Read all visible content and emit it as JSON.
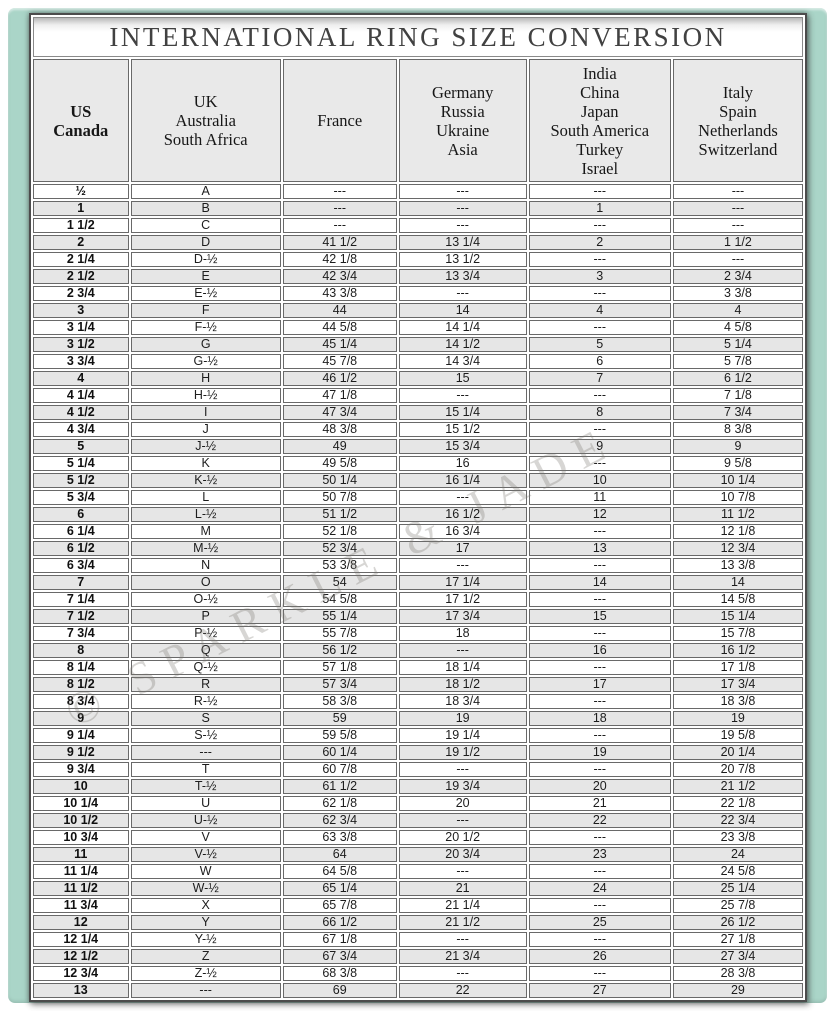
{
  "title": "INTERNATIONAL RING SIZE CONVERSION",
  "watermark": "© SPARKLE & JADE",
  "colors": {
    "frame_teal": "#aad5c8",
    "header_bg": "#e9e9e9",
    "row_alt_gray": "#e6e6e6",
    "grid_border": "#696969",
    "title_text": "#414141"
  },
  "chart_data": {
    "type": "table",
    "title": "INTERNATIONAL RING SIZE CONVERSION",
    "empty_marker": "---",
    "columns": [
      {
        "key": "us-canada",
        "bold": true,
        "lines": [
          "US",
          "Canada"
        ]
      },
      {
        "key": "uk-australia-south-africa",
        "bold": false,
        "lines": [
          "UK",
          "Australia",
          "South Africa"
        ]
      },
      {
        "key": "france",
        "bold": false,
        "lines": [
          "France"
        ]
      },
      {
        "key": "germany-russia-ukraine-asia",
        "bold": false,
        "lines": [
          "Germany",
          "Russia",
          "Ukraine",
          "Asia"
        ]
      },
      {
        "key": "india-china-japan-south-america-turkey-israel",
        "bold": false,
        "lines": [
          "India",
          "China",
          "Japan",
          "South America",
          "Turkey",
          "Israel"
        ]
      },
      {
        "key": "italy-spain-netherlands-switzerland",
        "bold": false,
        "lines": [
          "Italy",
          "Spain",
          "Netherlands",
          "Switzerland"
        ]
      }
    ],
    "rows": [
      [
        "½",
        "A",
        "---",
        "---",
        "---",
        "---"
      ],
      [
        "1",
        "B",
        "---",
        "---",
        "1",
        "---"
      ],
      [
        "1 1/2",
        "C",
        "---",
        "---",
        "---",
        "---"
      ],
      [
        "2",
        "D",
        "41 1/2",
        "13 1/4",
        "2",
        "1 1/2"
      ],
      [
        "2 1/4",
        "D-½",
        "42 1/8",
        "13 1/2",
        "---",
        "---"
      ],
      [
        "2 1/2",
        "E",
        "42 3/4",
        "13 3/4",
        "3",
        "2 3/4"
      ],
      [
        "2 3/4",
        "E-½",
        "43 3/8",
        "---",
        "---",
        "3 3/8"
      ],
      [
        "3",
        "F",
        "44",
        "14",
        "4",
        "4"
      ],
      [
        "3 1/4",
        "F-½",
        "44 5/8",
        "14 1/4",
        "---",
        "4 5/8"
      ],
      [
        "3 1/2",
        "G",
        "45 1/4",
        "14 1/2",
        "5",
        "5 1/4"
      ],
      [
        "3 3/4",
        "G-½",
        "45 7/8",
        "14 3/4",
        "6",
        "5 7/8"
      ],
      [
        "4",
        "H",
        "46 1/2",
        "15",
        "7",
        "6 1/2"
      ],
      [
        "4 1/4",
        "H-½",
        "47 1/8",
        "---",
        "---",
        "7 1/8"
      ],
      [
        "4 1/2",
        "I",
        "47 3/4",
        "15 1/4",
        "8",
        "7 3/4"
      ],
      [
        "4 3/4",
        "J",
        "48 3/8",
        "15 1/2",
        "---",
        "8 3/8"
      ],
      [
        "5",
        "J-½",
        "49",
        "15 3/4",
        "9",
        "9"
      ],
      [
        "5 1/4",
        "K",
        "49 5/8",
        "16",
        "---",
        "9 5/8"
      ],
      [
        "5 1/2",
        "K-½",
        "50 1/4",
        "16 1/4",
        "10",
        "10 1/4"
      ],
      [
        "5 3/4",
        "L",
        "50 7/8",
        "---",
        "11",
        "10 7/8"
      ],
      [
        "6",
        "L-½",
        "51 1/2",
        "16 1/2",
        "12",
        "11 1/2"
      ],
      [
        "6 1/4",
        "M",
        "52 1/8",
        "16 3/4",
        "---",
        "12 1/8"
      ],
      [
        "6 1/2",
        "M-½",
        "52 3/4",
        "17",
        "13",
        "12 3/4"
      ],
      [
        "6 3/4",
        "N",
        "53 3/8",
        "---",
        "---",
        "13 3/8"
      ],
      [
        "7",
        "O",
        "54",
        "17 1/4",
        "14",
        "14"
      ],
      [
        "7 1/4",
        "O-½",
        "54 5/8",
        "17 1/2",
        "---",
        "14 5/8"
      ],
      [
        "7 1/2",
        "P",
        "55 1/4",
        "17 3/4",
        "15",
        "15 1/4"
      ],
      [
        "7 3/4",
        "P-½",
        "55 7/8",
        "18",
        "---",
        "15 7/8"
      ],
      [
        "8",
        "Q",
        "56 1/2",
        "---",
        "16",
        "16 1/2"
      ],
      [
        "8 1/4",
        "Q-½",
        "57 1/8",
        "18 1/4",
        "---",
        "17 1/8"
      ],
      [
        "8 1/2",
        "R",
        "57 3/4",
        "18 1/2",
        "17",
        "17 3/4"
      ],
      [
        "8 3/4",
        "R-½",
        "58 3/8",
        "18 3/4",
        "---",
        "18 3/8"
      ],
      [
        "9",
        "S",
        "59",
        "19",
        "18",
        "19"
      ],
      [
        "9 1/4",
        "S-½",
        "59 5/8",
        "19 1/4",
        "---",
        "19 5/8"
      ],
      [
        "9 1/2",
        "---",
        "60 1/4",
        "19 1/2",
        "19",
        "20 1/4"
      ],
      [
        "9 3/4",
        "T",
        "60 7/8",
        "---",
        "---",
        "20 7/8"
      ],
      [
        "10",
        "T-½",
        "61 1/2",
        "19 3/4",
        "20",
        "21 1/2"
      ],
      [
        "10 1/4",
        "U",
        "62 1/8",
        "20",
        "21",
        "22 1/8"
      ],
      [
        "10 1/2",
        "U-½",
        "62 3/4",
        "---",
        "22",
        "22 3/4"
      ],
      [
        "10 3/4",
        "V",
        "63 3/8",
        "20 1/2",
        "---",
        "23 3/8"
      ],
      [
        "11",
        "V-½",
        "64",
        "20 3/4",
        "23",
        "24"
      ],
      [
        "11 1/4",
        "W",
        "64 5/8",
        "---",
        "---",
        "24 5/8"
      ],
      [
        "11 1/2",
        "W-½",
        "65 1/4",
        "21",
        "24",
        "25 1/4"
      ],
      [
        "11 3/4",
        "X",
        "65 7/8",
        "21 1/4",
        "---",
        "25 7/8"
      ],
      [
        "12",
        "Y",
        "66 1/2",
        "21 1/2",
        "25",
        "26 1/2"
      ],
      [
        "12 1/4",
        "Y-½",
        "67 1/8",
        "---",
        "---",
        "27 1/8"
      ],
      [
        "12 1/2",
        "Z",
        "67 3/4",
        "21 3/4",
        "26",
        "27 3/4"
      ],
      [
        "12 3/4",
        "Z-½",
        "68 3/8",
        "---",
        "---",
        "28 3/8"
      ],
      [
        "13",
        "---",
        "69",
        "22",
        "27",
        "29"
      ]
    ]
  }
}
